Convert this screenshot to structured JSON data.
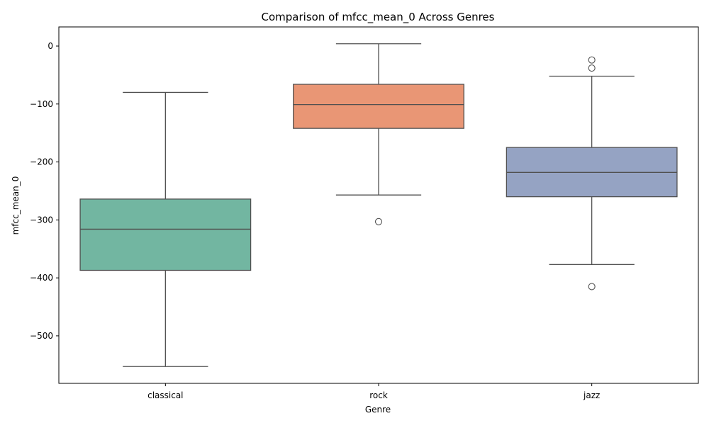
{
  "chart_data": {
    "type": "box",
    "title": "Comparison of mfcc_mean_0 Across Genres",
    "xlabel": "Genre",
    "ylabel": "mfcc_mean_0",
    "ylim": [
      -582,
      33
    ],
    "yticks": [
      0,
      -100,
      -200,
      -300,
      -400,
      -500
    ],
    "ytick_labels": [
      "0",
      "−100",
      "−200",
      "−300",
      "−400",
      "−500"
    ],
    "grid": false,
    "categories": [
      "classical",
      "rock",
      "jazz"
    ],
    "colors": [
      "#72b6a1",
      "#e99675",
      "#95a3c3"
    ],
    "line_color": "#505050",
    "boxes": [
      {
        "category": "classical",
        "whisker_low": -553,
        "q1": -387,
        "median": -316,
        "q3": -264,
        "whisker_high": -80,
        "outliers": []
      },
      {
        "category": "rock",
        "whisker_low": -257,
        "q1": -142,
        "median": -101,
        "q3": -66,
        "whisker_high": 4,
        "outliers": [
          -303
        ]
      },
      {
        "category": "jazz",
        "whisker_low": -377,
        "q1": -260,
        "median": -218,
        "q3": -175,
        "whisker_high": -52,
        "outliers": [
          -24,
          -38,
          -415
        ]
      }
    ]
  }
}
